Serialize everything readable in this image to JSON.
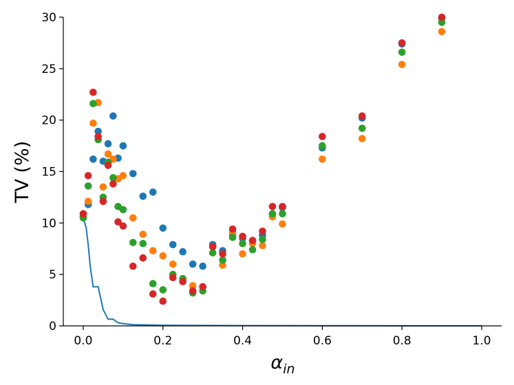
{
  "chart_data": {
    "type": "scatter",
    "xlabel": "α",
    "xlabel_sub": "in",
    "ylabel": "TV (%)",
    "xlim": [
      -0.05,
      1.05
    ],
    "ylim": [
      0,
      30
    ],
    "xticks": [
      0.0,
      0.2,
      0.4,
      0.6,
      0.8,
      1.0
    ],
    "xtick_labels": [
      "0.0",
      "0.2",
      "0.4",
      "0.6",
      "0.8",
      "1.0"
    ],
    "yticks": [
      0,
      5,
      10,
      15,
      20,
      25,
      30
    ],
    "ytick_labels": [
      "0",
      "5",
      "10",
      "15",
      "20",
      "25",
      "30"
    ],
    "grid": false,
    "spines": "left-bottom",
    "series": [
      {
        "color": "#1f77b4",
        "x": [
          0.0,
          0.0125,
          0.025,
          0.0375,
          0.05,
          0.0625,
          0.075,
          0.0875,
          0.1,
          0.125,
          0.15,
          0.175,
          0.2,
          0.225,
          0.25,
          0.275,
          0.3,
          0.325,
          0.35,
          0.375,
          0.4,
          0.425,
          0.45,
          0.475,
          0.5,
          0.6,
          0.7,
          0.8,
          0.9
        ],
        "y": [
          10.6,
          11.8,
          16.2,
          18.9,
          16.0,
          17.7,
          20.4,
          16.3,
          17.5,
          14.8,
          12.6,
          13.0,
          9.5,
          7.9,
          7.2,
          6.0,
          5.8,
          7.9,
          7.3,
          8.8,
          8.5,
          8.3,
          8.8,
          10.9,
          11.5,
          17.3,
          20.2,
          27.4,
          29.9
        ]
      },
      {
        "color": "#ff7f0e",
        "x": [
          0.0,
          0.0125,
          0.025,
          0.0375,
          0.05,
          0.0625,
          0.075,
          0.0875,
          0.1,
          0.125,
          0.15,
          0.175,
          0.2,
          0.225,
          0.25,
          0.275,
          0.3,
          0.325,
          0.35,
          0.375,
          0.4,
          0.425,
          0.45,
          0.475,
          0.5,
          0.6,
          0.7,
          0.8,
          0.9
        ],
        "y": [
          10.6,
          12.1,
          19.7,
          21.7,
          13.5,
          16.7,
          16.2,
          14.3,
          14.6,
          10.5,
          8.9,
          7.3,
          6.8,
          6.0,
          4.4,
          3.9,
          3.8,
          7.7,
          5.9,
          9.1,
          7.0,
          8.0,
          7.8,
          10.6,
          9.9,
          16.2,
          18.2,
          25.4,
          28.6
        ]
      },
      {
        "color": "#2ca02c",
        "x": [
          0.0,
          0.0125,
          0.025,
          0.0375,
          0.05,
          0.0625,
          0.075,
          0.0875,
          0.1,
          0.125,
          0.15,
          0.175,
          0.2,
          0.225,
          0.25,
          0.275,
          0.3,
          0.325,
          0.35,
          0.375,
          0.4,
          0.425,
          0.45,
          0.475,
          0.5,
          0.6,
          0.7,
          0.8,
          0.9
        ],
        "y": [
          10.5,
          13.6,
          21.6,
          18.1,
          12.5,
          15.9,
          14.4,
          11.6,
          11.3,
          8.1,
          8.0,
          4.1,
          3.5,
          5.0,
          4.6,
          3.2,
          3.4,
          7.1,
          6.4,
          8.6,
          8.0,
          7.4,
          8.4,
          10.9,
          10.9,
          17.5,
          19.2,
          26.6,
          29.5
        ]
      },
      {
        "color": "#d62728",
        "x": [
          0.0,
          0.0125,
          0.025,
          0.0375,
          0.05,
          0.0625,
          0.075,
          0.0875,
          0.1,
          0.125,
          0.15,
          0.175,
          0.2,
          0.225,
          0.25,
          0.275,
          0.3,
          0.325,
          0.35,
          0.375,
          0.4,
          0.425,
          0.45,
          0.475,
          0.5,
          0.6,
          0.7,
          0.8,
          0.9
        ],
        "y": [
          10.9,
          14.6,
          22.7,
          18.4,
          12.1,
          15.6,
          13.8,
          10.1,
          9.7,
          5.8,
          6.6,
          3.1,
          2.4,
          4.7,
          4.3,
          3.4,
          3.8,
          7.7,
          7.0,
          9.4,
          8.7,
          8.3,
          9.2,
          11.6,
          11.6,
          18.4,
          20.4,
          27.5,
          30.0
        ]
      }
    ],
    "line": {
      "color": "#1f77b4",
      "x": [
        0.0,
        0.0075,
        0.0125,
        0.0175,
        0.025,
        0.0375,
        0.05,
        0.0625,
        0.075,
        0.0875,
        0.1,
        0.125,
        0.15,
        0.2,
        0.3,
        0.4,
        0.6,
        0.8,
        1.0
      ],
      "y": [
        10.5,
        9.5,
        7.9,
        5.8,
        3.8,
        3.8,
        1.6,
        0.65,
        0.65,
        0.3,
        0.22,
        0.12,
        0.1,
        0.06,
        0.04,
        0.03,
        0.02,
        0.01,
        0.01
      ]
    }
  }
}
